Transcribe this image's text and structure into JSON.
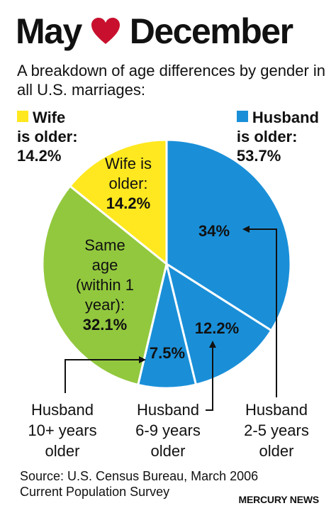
{
  "header": {
    "title_left": "May",
    "title_right": "December",
    "subtitle": "A breakdown of age differences by gender in all U.S. marriages:"
  },
  "legend": {
    "wife_line1": "Wife",
    "wife_line2": "is older:",
    "wife_value": "14.2%",
    "husband_line1": "Husband",
    "husband_line2": "is older:",
    "husband_value": "53.7%"
  },
  "colors": {
    "wife": "#ffe81f",
    "same": "#92c83e",
    "husband": "#1a8fd8",
    "heart": "#c8102e"
  },
  "chart_data": {
    "type": "pie",
    "title": "May ♥ December",
    "slices": [
      {
        "label": "Husband 2-5 years older",
        "value": 34,
        "display": "34%",
        "color": "#1a8fd8"
      },
      {
        "label": "Husband 6-9 years older",
        "value": 12.2,
        "display": "12.2%",
        "color": "#1a8fd8"
      },
      {
        "label": "Husband 10+ years older",
        "value": 7.5,
        "display": "7.5%",
        "color": "#1a8fd8"
      },
      {
        "label": "Same age (within 1 year)",
        "value": 32.1,
        "display": "32.1%",
        "color": "#92c83e"
      },
      {
        "label": "Wife is older",
        "value": 14.2,
        "display": "14.2%",
        "color": "#ffe81f"
      }
    ],
    "inside_labels": {
      "wife": [
        "Wife is",
        "older:",
        "14.2%"
      ],
      "same": [
        "Same",
        "age",
        "(within 1",
        "year):",
        "32.1%"
      ]
    },
    "callouts": {
      "h25": [
        "Husband",
        "2-5 years",
        "older"
      ],
      "h69": [
        "Husband",
        "6-9 years",
        "older"
      ],
      "h10": [
        "Husband",
        "10+ years",
        "older"
      ]
    }
  },
  "footer": {
    "source_line1": "Source: U.S. Census Bureau, March 2006",
    "source_line2": "Current Population Survey",
    "credit": "MERCURY NEWS"
  }
}
